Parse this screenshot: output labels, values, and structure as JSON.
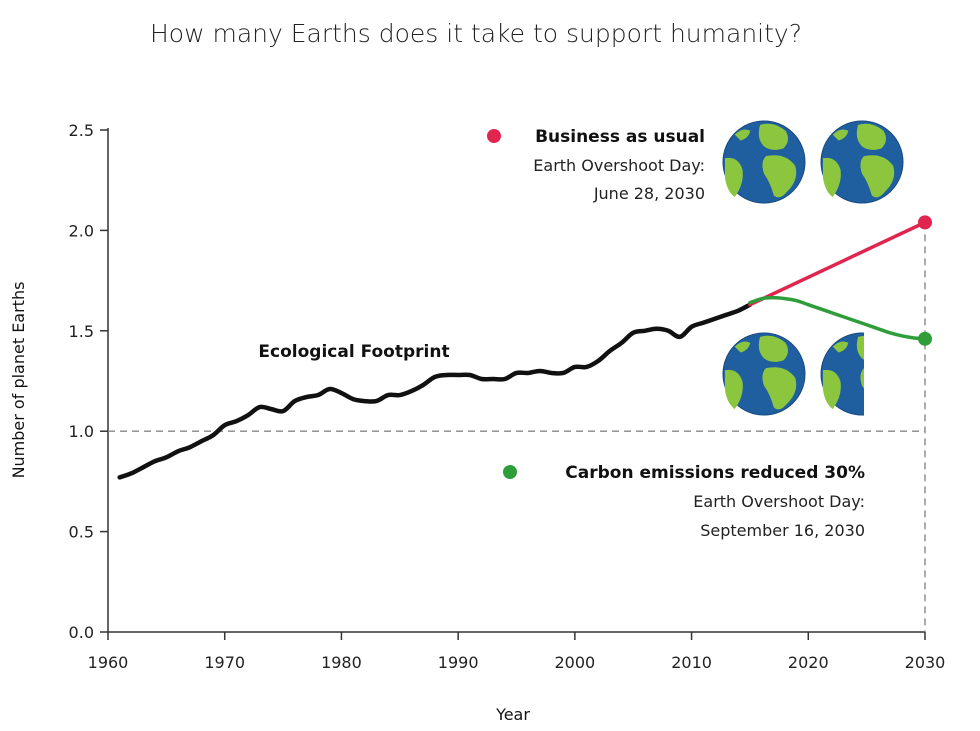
{
  "chart_data": {
    "type": "line",
    "title": "How many Earths does it take to support humanity?",
    "xlabel": "Year",
    "ylabel": "Number of planet Earths",
    "xlim": [
      1960,
      2030
    ],
    "ylim": [
      0,
      2.5
    ],
    "x_ticks": [
      "1960",
      "1970",
      "1980",
      "1990",
      "2000",
      "2010",
      "2020",
      "2030"
    ],
    "y_ticks": [
      "0.0",
      "0.5",
      "1.0",
      "1.5",
      "2.0",
      "2.5"
    ],
    "reference_line": {
      "y": 1.0,
      "style": "dashed"
    },
    "series": [
      {
        "name": "Ecological Footprint",
        "color": "#111111",
        "x": [
          1961,
          1962,
          1963,
          1964,
          1965,
          1966,
          1967,
          1968,
          1969,
          1970,
          1971,
          1972,
          1973,
          1974,
          1975,
          1976,
          1977,
          1978,
          1979,
          1980,
          1981,
          1982,
          1983,
          1984,
          1985,
          1986,
          1987,
          1988,
          1989,
          1990,
          1991,
          1992,
          1993,
          1994,
          1995,
          1996,
          1997,
          1998,
          1999,
          2000,
          2001,
          2002,
          2003,
          2004,
          2005,
          2006,
          2007,
          2008,
          2009,
          2010,
          2011,
          2012,
          2013,
          2014,
          2015
        ],
        "y": [
          0.77,
          0.79,
          0.82,
          0.85,
          0.87,
          0.9,
          0.92,
          0.95,
          0.98,
          1.03,
          1.05,
          1.08,
          1.12,
          1.11,
          1.1,
          1.15,
          1.17,
          1.18,
          1.21,
          1.19,
          1.16,
          1.15,
          1.15,
          1.18,
          1.18,
          1.2,
          1.23,
          1.27,
          1.28,
          1.28,
          1.28,
          1.26,
          1.26,
          1.26,
          1.29,
          1.29,
          1.3,
          1.29,
          1.29,
          1.32,
          1.32,
          1.35,
          1.4,
          1.44,
          1.49,
          1.5,
          1.51,
          1.5,
          1.47,
          1.52,
          1.54,
          1.56,
          1.58,
          1.6,
          1.63
        ]
      },
      {
        "name": "Business as usual",
        "color": "#e0254e",
        "x": [
          2015,
          2030
        ],
        "y": [
          1.63,
          2.04
        ]
      },
      {
        "name": "Carbon emissions reduced 30%",
        "color": "#2f9e3a",
        "x": [
          2015,
          2016,
          2017,
          2018,
          2019,
          2020,
          2021,
          2022,
          2023,
          2024,
          2025,
          2026,
          2027,
          2028,
          2029,
          2030
        ],
        "y": [
          1.64,
          1.66,
          1.665,
          1.66,
          1.65,
          1.63,
          1.61,
          1.59,
          1.57,
          1.55,
          1.53,
          1.51,
          1.49,
          1.475,
          1.465,
          1.46
        ]
      }
    ],
    "annotations": {
      "business": {
        "head": "Business as usual",
        "line1": "Earth Overshoot Day:",
        "line2": "June 28, 2030",
        "earths_shown": 2
      },
      "carbon": {
        "head": "Carbon emissions reduced 30%",
        "line1": "Earth Overshoot Day:",
        "line2": "September 16, 2030",
        "earths_shown": 1.5
      },
      "footprint_label": "Ecological Footprint"
    },
    "grid": false
  },
  "colors": {
    "ocean": "#1f5fa0",
    "land": "#8cc63f",
    "ocean_edge": "#174a80"
  }
}
